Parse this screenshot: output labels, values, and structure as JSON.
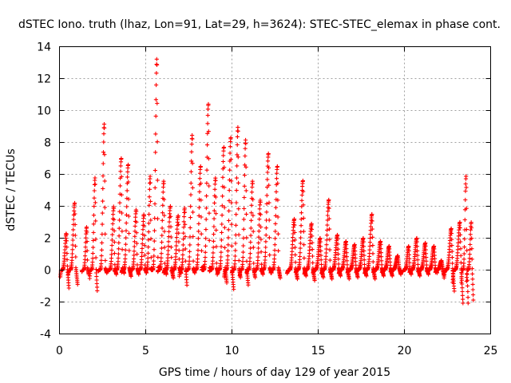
{
  "chart_data": {
    "type": "scatter",
    "title": "dSTEC Iono. truth (lhaz, Lon=91, Lat=29, h=3624): STEC-STEC_elemax in phase cont.",
    "xlabel": "GPS time / hours of day 129 of year 2015",
    "ylabel": "dSTEC  / TECUs",
    "xlim": [
      0,
      25
    ],
    "ylim": [
      -4,
      14
    ],
    "xticks": [
      0,
      5,
      10,
      15,
      20,
      25
    ],
    "yticks": [
      -4,
      -2,
      0,
      2,
      4,
      6,
      8,
      10,
      12,
      14
    ],
    "grid": true,
    "marker": "+",
    "color": "#ff0000",
    "arcs": [
      {
        "start": 0.05,
        "end": 0.55,
        "min": -1.2,
        "max": 2.3
      },
      {
        "start": 0.5,
        "end": 1.05,
        "min": -0.9,
        "max": 4.2
      },
      {
        "start": 1.3,
        "end": 1.7,
        "min": -0.3,
        "max": 2.7
      },
      {
        "start": 1.75,
        "end": 2.2,
        "min": -1.5,
        "max": 5.8
      },
      {
        "start": 2.25,
        "end": 2.75,
        "min": -0.2,
        "max": 9.2
      },
      {
        "start": 2.8,
        "end": 3.3,
        "min": -0.3,
        "max": 4.0
      },
      {
        "start": 3.2,
        "end": 3.75,
        "min": -0.2,
        "max": 7.0
      },
      {
        "start": 3.6,
        "end": 4.15,
        "min": -0.4,
        "max": 6.6
      },
      {
        "start": 4.1,
        "end": 4.6,
        "min": -0.3,
        "max": 3.8
      },
      {
        "start": 4.55,
        "end": 5.05,
        "min": -0.2,
        "max": 3.5
      },
      {
        "start": 4.95,
        "end": 5.4,
        "min": 0.0,
        "max": 5.9
      },
      {
        "start": 5.3,
        "end": 5.8,
        "min": 0.2,
        "max": 13.3
      },
      {
        "start": 5.7,
        "end": 6.2,
        "min": -0.3,
        "max": 5.6
      },
      {
        "start": 6.05,
        "end": 6.6,
        "min": -0.5,
        "max": 4.0
      },
      {
        "start": 6.5,
        "end": 7.05,
        "min": -0.2,
        "max": 3.4
      },
      {
        "start": 6.95,
        "end": 7.4,
        "min": -1.1,
        "max": 3.9
      },
      {
        "start": 7.35,
        "end": 7.85,
        "min": -0.2,
        "max": 8.5
      },
      {
        "start": 7.8,
        "end": 8.35,
        "min": 0.2,
        "max": 6.5
      },
      {
        "start": 8.25,
        "end": 8.8,
        "min": 0.1,
        "max": 10.4
      },
      {
        "start": 8.7,
        "end": 9.2,
        "min": -0.2,
        "max": 5.8
      },
      {
        "start": 9.15,
        "end": 9.7,
        "min": -0.8,
        "max": 7.7
      },
      {
        "start": 9.55,
        "end": 10.1,
        "min": -1.2,
        "max": 8.3
      },
      {
        "start": 10.0,
        "end": 10.5,
        "min": -0.5,
        "max": 9.0
      },
      {
        "start": 10.45,
        "end": 10.95,
        "min": -1.0,
        "max": 8.2
      },
      {
        "start": 10.85,
        "end": 11.35,
        "min": -0.5,
        "max": 5.6
      },
      {
        "start": 11.3,
        "end": 11.8,
        "min": -0.3,
        "max": 4.4
      },
      {
        "start": 11.7,
        "end": 12.3,
        "min": -0.2,
        "max": 7.3
      },
      {
        "start": 12.25,
        "end": 12.8,
        "min": -0.5,
        "max": 6.5
      },
      {
        "start": 13.2,
        "end": 13.8,
        "min": -0.6,
        "max": 3.2
      },
      {
        "start": 13.7,
        "end": 14.3,
        "min": -0.4,
        "max": 5.6
      },
      {
        "start": 14.2,
        "end": 14.8,
        "min": -0.7,
        "max": 2.9
      },
      {
        "start": 14.7,
        "end": 15.3,
        "min": -0.5,
        "max": 2.0
      },
      {
        "start": 15.2,
        "end": 15.8,
        "min": -0.6,
        "max": 4.4
      },
      {
        "start": 15.7,
        "end": 16.3,
        "min": -0.4,
        "max": 2.2
      },
      {
        "start": 16.2,
        "end": 16.8,
        "min": -0.6,
        "max": 1.8
      },
      {
        "start": 16.7,
        "end": 17.3,
        "min": -0.5,
        "max": 1.6
      },
      {
        "start": 17.2,
        "end": 17.8,
        "min": -0.4,
        "max": 2.0
      },
      {
        "start": 17.7,
        "end": 18.3,
        "min": -0.6,
        "max": 3.5
      },
      {
        "start": 18.2,
        "end": 18.8,
        "min": -0.4,
        "max": 1.8
      },
      {
        "start": 18.7,
        "end": 19.3,
        "min": -0.4,
        "max": 1.5
      },
      {
        "start": 19.2,
        "end": 19.8,
        "min": -0.3,
        "max": 0.9
      },
      {
        "start": 19.9,
        "end": 20.4,
        "min": -0.3,
        "max": 1.5
      },
      {
        "start": 20.3,
        "end": 20.9,
        "min": -0.4,
        "max": 2.0
      },
      {
        "start": 20.8,
        "end": 21.4,
        "min": -0.3,
        "max": 1.7
      },
      {
        "start": 21.3,
        "end": 21.9,
        "min": -0.2,
        "max": 1.5
      },
      {
        "start": 21.8,
        "end": 22.3,
        "min": -0.4,
        "max": 0.6
      },
      {
        "start": 22.3,
        "end": 22.9,
        "min": -1.4,
        "max": 2.6
      },
      {
        "start": 22.8,
        "end": 23.4,
        "min": -2.2,
        "max": 3.0
      },
      {
        "start": 23.3,
        "end": 23.7,
        "min": -2.2,
        "max": 5.9
      },
      {
        "start": 23.6,
        "end": 24.0,
        "min": -2.0,
        "max": 3.0
      }
    ]
  }
}
